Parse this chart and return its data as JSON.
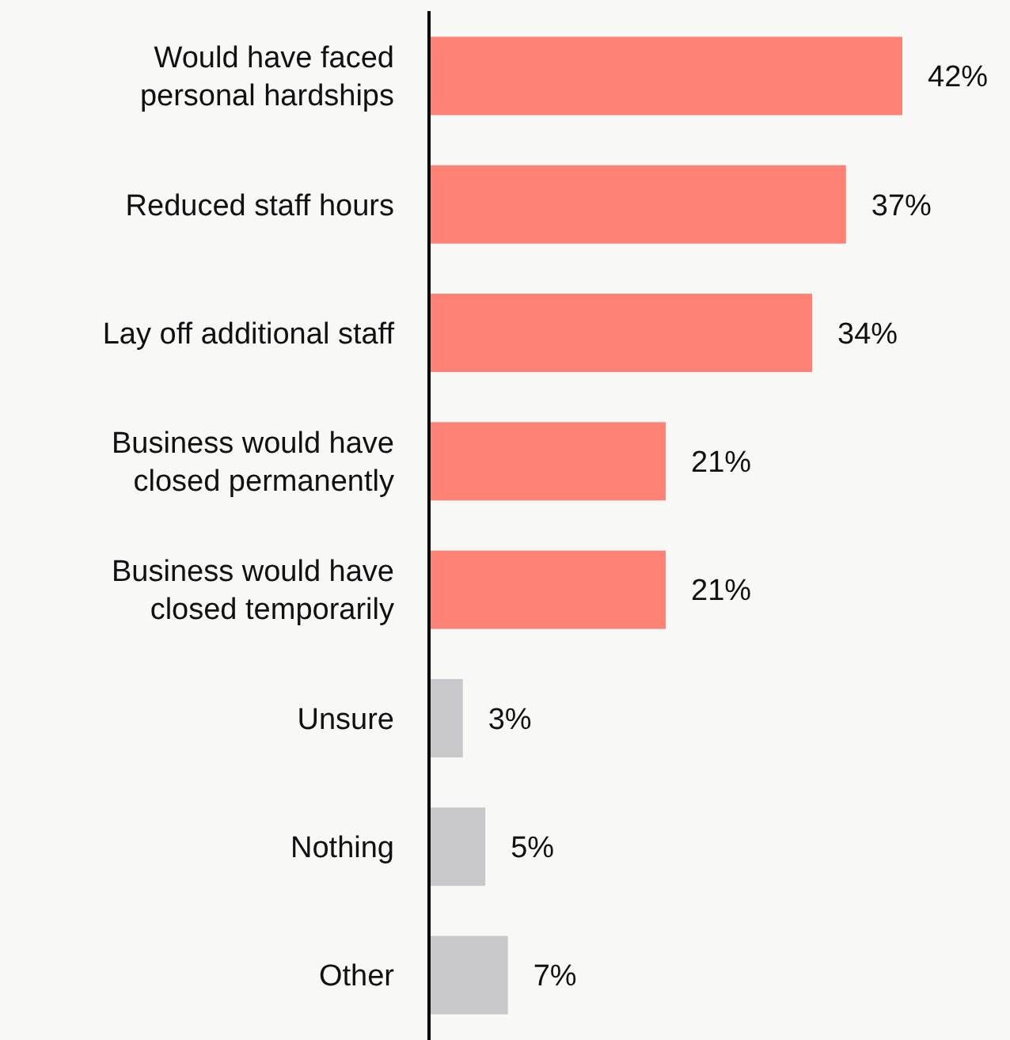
{
  "chart_data": {
    "type": "bar",
    "orientation": "horizontal",
    "categories": [
      "Would have faced personal hardships",
      "Reduced staff hours",
      "Lay off additional staff",
      "Business would have closed permanently",
      "Business would have closed temporarily",
      "Unsure",
      "Nothing",
      "Other"
    ],
    "values": [
      42,
      37,
      34,
      21,
      21,
      3,
      5,
      7
    ],
    "colors": [
      "#fe8176",
      "#fe8176",
      "#fe8176",
      "#fe8176",
      "#fe8176",
      "#c8c8ca",
      "#c8c8ca",
      "#c8c8ca"
    ],
    "value_labels": [
      "42%",
      "37%",
      "34%",
      "21%",
      "21%",
      "3%",
      "5%",
      "7%"
    ],
    "tick_labels": "y"
  }
}
